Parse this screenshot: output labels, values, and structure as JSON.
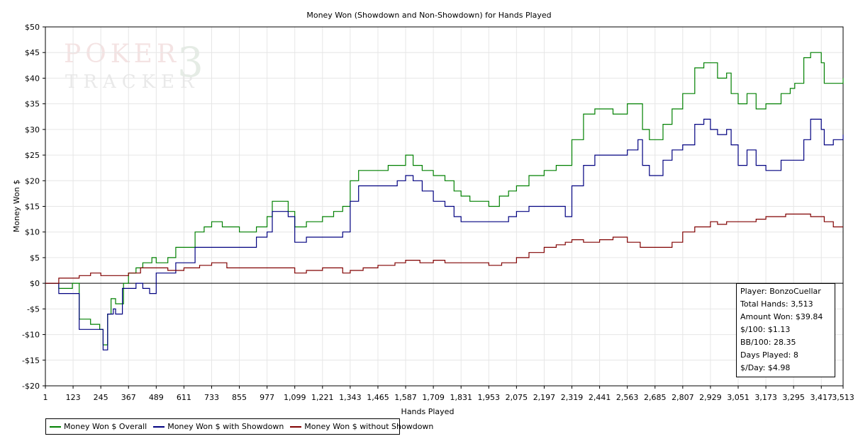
{
  "chart_data": {
    "type": "line",
    "title": "Money Won (Showdown and Non-Showdown) for Hands Played",
    "xlabel": "Hands Played",
    "ylabel": "Money Won $",
    "xlim": [
      1,
      3513
    ],
    "ylim": [
      -20,
      50
    ],
    "grid": true,
    "watermark": "POKER TRACKER 3",
    "x_ticks": [
      1,
      123,
      245,
      367,
      489,
      611,
      733,
      855,
      977,
      1099,
      1221,
      1343,
      1465,
      1587,
      1709,
      1831,
      1953,
      2075,
      2197,
      2319,
      2441,
      2563,
      2685,
      2807,
      2929,
      3051,
      3173,
      3295,
      3417,
      3513
    ],
    "x_tick_labels": [
      "1",
      "123",
      "245",
      "367",
      "489",
      "611",
      "733",
      "855",
      "977",
      "1,099",
      "1,221",
      "1,343",
      "1,465",
      "1,587",
      "1,709",
      "1,831",
      "1,953",
      "2,075",
      "2,197",
      "2,319",
      "2,441",
      "2,563",
      "2,685",
      "2,807",
      "2,929",
      "3,051",
      "3,173",
      "3,295",
      "3,417",
      "3,513"
    ],
    "y_ticks": [
      50,
      45,
      40,
      35,
      30,
      25,
      20,
      15,
      10,
      5,
      0,
      -5,
      -10,
      -15,
      -20
    ],
    "y_tick_labels": [
      "$50",
      "$45",
      "$40",
      "$35",
      "$30",
      "$25",
      "$20",
      "$15",
      "$10",
      "$5",
      "$0",
      "-$5",
      "-$10",
      "-$15",
      "-$20"
    ],
    "series": [
      {
        "name": "Money Won $ Overall",
        "color": "#008000",
        "points": [
          [
            1,
            0
          ],
          [
            60,
            -1
          ],
          [
            110,
            -1
          ],
          [
            120,
            0
          ],
          [
            150,
            -7
          ],
          [
            200,
            -8
          ],
          [
            240,
            -9
          ],
          [
            255,
            -12
          ],
          [
            275,
            -6
          ],
          [
            290,
            -3
          ],
          [
            310,
            -4
          ],
          [
            345,
            0
          ],
          [
            367,
            2
          ],
          [
            400,
            3
          ],
          [
            430,
            4
          ],
          [
            470,
            5
          ],
          [
            489,
            4
          ],
          [
            540,
            5
          ],
          [
            575,
            7
          ],
          [
            611,
            7
          ],
          [
            660,
            10
          ],
          [
            700,
            11
          ],
          [
            733,
            12
          ],
          [
            780,
            11
          ],
          [
            855,
            10
          ],
          [
            930,
            11
          ],
          [
            977,
            13
          ],
          [
            1000,
            16
          ],
          [
            1040,
            16
          ],
          [
            1070,
            14
          ],
          [
            1099,
            11
          ],
          [
            1150,
            12
          ],
          [
            1190,
            12
          ],
          [
            1221,
            13
          ],
          [
            1270,
            14
          ],
          [
            1310,
            15
          ],
          [
            1343,
            20
          ],
          [
            1380,
            22
          ],
          [
            1430,
            22
          ],
          [
            1465,
            22
          ],
          [
            1510,
            23
          ],
          [
            1550,
            23
          ],
          [
            1587,
            25
          ],
          [
            1620,
            23
          ],
          [
            1660,
            22
          ],
          [
            1709,
            21
          ],
          [
            1760,
            20
          ],
          [
            1800,
            18
          ],
          [
            1831,
            17
          ],
          [
            1870,
            16
          ],
          [
            1910,
            16
          ],
          [
            1953,
            15
          ],
          [
            2000,
            17
          ],
          [
            2040,
            18
          ],
          [
            2075,
            19
          ],
          [
            2130,
            21
          ],
          [
            2197,
            22
          ],
          [
            2250,
            23
          ],
          [
            2290,
            23
          ],
          [
            2319,
            28
          ],
          [
            2370,
            33
          ],
          [
            2420,
            34
          ],
          [
            2441,
            34
          ],
          [
            2500,
            33
          ],
          [
            2563,
            35
          ],
          [
            2610,
            35
          ],
          [
            2630,
            30
          ],
          [
            2660,
            28
          ],
          [
            2685,
            28
          ],
          [
            2720,
            31
          ],
          [
            2760,
            34
          ],
          [
            2807,
            37
          ],
          [
            2860,
            42
          ],
          [
            2900,
            43
          ],
          [
            2929,
            43
          ],
          [
            2960,
            40
          ],
          [
            3000,
            41
          ],
          [
            3020,
            37
          ],
          [
            3051,
            35
          ],
          [
            3090,
            37
          ],
          [
            3130,
            34
          ],
          [
            3173,
            35
          ],
          [
            3200,
            35
          ],
          [
            3240,
            37
          ],
          [
            3280,
            38
          ],
          [
            3300,
            39
          ],
          [
            3340,
            44
          ],
          [
            3370,
            45
          ],
          [
            3417,
            43
          ],
          [
            3430,
            39
          ],
          [
            3470,
            39
          ],
          [
            3513,
            40
          ]
        ]
      },
      {
        "name": "Money Won $ with Showdown",
        "color": "#000080",
        "points": [
          [
            1,
            0
          ],
          [
            60,
            -2
          ],
          [
            110,
            -2
          ],
          [
            130,
            -2
          ],
          [
            150,
            -9
          ],
          [
            200,
            -9
          ],
          [
            240,
            -9
          ],
          [
            255,
            -13
          ],
          [
            275,
            -6
          ],
          [
            300,
            -5
          ],
          [
            310,
            -6
          ],
          [
            340,
            -1
          ],
          [
            367,
            -1
          ],
          [
            400,
            0
          ],
          [
            430,
            -1
          ],
          [
            460,
            -2
          ],
          [
            489,
            2
          ],
          [
            540,
            2
          ],
          [
            575,
            4
          ],
          [
            611,
            4
          ],
          [
            660,
            7
          ],
          [
            700,
            7
          ],
          [
            733,
            7
          ],
          [
            780,
            7
          ],
          [
            855,
            7
          ],
          [
            930,
            9
          ],
          [
            977,
            10
          ],
          [
            1000,
            14
          ],
          [
            1040,
            14
          ],
          [
            1070,
            13
          ],
          [
            1099,
            8
          ],
          [
            1150,
            9
          ],
          [
            1190,
            9
          ],
          [
            1221,
            9
          ],
          [
            1270,
            9
          ],
          [
            1310,
            10
          ],
          [
            1343,
            16
          ],
          [
            1380,
            19
          ],
          [
            1430,
            19
          ],
          [
            1465,
            19
          ],
          [
            1510,
            19
          ],
          [
            1550,
            20
          ],
          [
            1587,
            21
          ],
          [
            1620,
            20
          ],
          [
            1660,
            18
          ],
          [
            1709,
            16
          ],
          [
            1760,
            15
          ],
          [
            1800,
            13
          ],
          [
            1831,
            12
          ],
          [
            1870,
            12
          ],
          [
            1910,
            12
          ],
          [
            1953,
            12
          ],
          [
            2000,
            12
          ],
          [
            2040,
            13
          ],
          [
            2075,
            14
          ],
          [
            2130,
            15
          ],
          [
            2197,
            15
          ],
          [
            2250,
            15
          ],
          [
            2290,
            13
          ],
          [
            2319,
            19
          ],
          [
            2370,
            23
          ],
          [
            2420,
            25
          ],
          [
            2441,
            25
          ],
          [
            2500,
            25
          ],
          [
            2563,
            26
          ],
          [
            2610,
            28
          ],
          [
            2630,
            23
          ],
          [
            2660,
            21
          ],
          [
            2685,
            21
          ],
          [
            2720,
            24
          ],
          [
            2760,
            26
          ],
          [
            2807,
            27
          ],
          [
            2860,
            31
          ],
          [
            2900,
            32
          ],
          [
            2929,
            30
          ],
          [
            2960,
            29
          ],
          [
            3000,
            30
          ],
          [
            3020,
            27
          ],
          [
            3051,
            23
          ],
          [
            3090,
            26
          ],
          [
            3130,
            23
          ],
          [
            3173,
            22
          ],
          [
            3200,
            22
          ],
          [
            3240,
            24
          ],
          [
            3280,
            24
          ],
          [
            3300,
            24
          ],
          [
            3340,
            28
          ],
          [
            3370,
            32
          ],
          [
            3417,
            30
          ],
          [
            3430,
            27
          ],
          [
            3470,
            28
          ],
          [
            3513,
            29
          ]
        ]
      },
      {
        "name": "Money Won $ without Showdown",
        "color": "#800000",
        "points": [
          [
            1,
            0
          ],
          [
            60,
            1
          ],
          [
            110,
            1
          ],
          [
            120,
            1
          ],
          [
            150,
            1.5
          ],
          [
            200,
            2
          ],
          [
            245,
            1.5
          ],
          [
            300,
            1.5
          ],
          [
            367,
            2
          ],
          [
            420,
            3
          ],
          [
            489,
            3
          ],
          [
            540,
            2.5
          ],
          [
            611,
            3
          ],
          [
            680,
            3.5
          ],
          [
            733,
            4
          ],
          [
            800,
            3
          ],
          [
            855,
            3
          ],
          [
            930,
            3
          ],
          [
            977,
            3
          ],
          [
            1040,
            3
          ],
          [
            1099,
            2
          ],
          [
            1150,
            2.5
          ],
          [
            1221,
            3
          ],
          [
            1270,
            3
          ],
          [
            1310,
            2
          ],
          [
            1343,
            2.5
          ],
          [
            1400,
            3
          ],
          [
            1465,
            3.5
          ],
          [
            1540,
            4
          ],
          [
            1587,
            4.5
          ],
          [
            1650,
            4
          ],
          [
            1709,
            4.5
          ],
          [
            1760,
            4
          ],
          [
            1831,
            4
          ],
          [
            1880,
            4
          ],
          [
            1953,
            3.5
          ],
          [
            2010,
            4
          ],
          [
            2075,
            5
          ],
          [
            2130,
            6
          ],
          [
            2197,
            7
          ],
          [
            2250,
            7.5
          ],
          [
            2290,
            8
          ],
          [
            2319,
            8.5
          ],
          [
            2370,
            8
          ],
          [
            2441,
            8.5
          ],
          [
            2500,
            9
          ],
          [
            2563,
            8
          ],
          [
            2620,
            7
          ],
          [
            2685,
            7
          ],
          [
            2720,
            7
          ],
          [
            2760,
            8
          ],
          [
            2807,
            10
          ],
          [
            2860,
            11
          ],
          [
            2929,
            12
          ],
          [
            2960,
            11.5
          ],
          [
            3000,
            12
          ],
          [
            3051,
            12
          ],
          [
            3090,
            12
          ],
          [
            3130,
            12.5
          ],
          [
            3173,
            13
          ],
          [
            3220,
            13
          ],
          [
            3260,
            13.5
          ],
          [
            3300,
            13.5
          ],
          [
            3340,
            13.5
          ],
          [
            3370,
            13
          ],
          [
            3417,
            13
          ],
          [
            3430,
            12
          ],
          [
            3470,
            11
          ],
          [
            3513,
            11
          ]
        ]
      }
    ],
    "stats": {
      "player": "Player: BonzoCuellar",
      "total_hands": "Total Hands: 3,513",
      "amount_won": "Amount Won: $39.84",
      "per_100": "$/100: $1.13",
      "bb_per_100": "BB/100: 28.35",
      "days_played": "Days Played: 8",
      "per_day": "$/Day: $4.98"
    }
  }
}
